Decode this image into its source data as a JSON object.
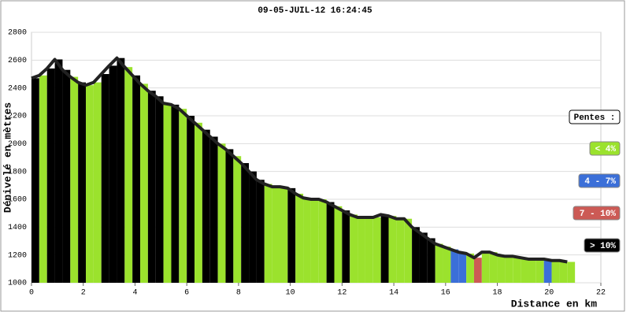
{
  "chart_data": {
    "type": "elevation-profile",
    "title": "09-05-JUIL-12 16:24:45",
    "y_label": "Dénivelé en mètres",
    "x_label": "Distance en km",
    "xlim": [
      0,
      22
    ],
    "xticks": [
      0,
      2,
      4,
      6,
      8,
      10,
      12,
      14,
      16,
      18,
      20,
      22
    ],
    "ylim": [
      1000,
      2800
    ],
    "yticks": [
      1000,
      1200,
      1400,
      1600,
      1800,
      2000,
      2200,
      2400,
      2600,
      2800
    ],
    "grid": true,
    "x": [
      0,
      0.3,
      0.6,
      0.9,
      1.2,
      1.5,
      1.8,
      2.1,
      2.4,
      2.7,
      3.0,
      3.3,
      3.6,
      3.9,
      4.2,
      4.5,
      4.8,
      5.1,
      5.4,
      5.7,
      6.0,
      6.3,
      6.6,
      6.9,
      7.2,
      7.5,
      7.8,
      8.1,
      8.4,
      8.7,
      9.0,
      9.3,
      9.6,
      9.9,
      10.2,
      10.5,
      10.8,
      11.1,
      11.4,
      11.7,
      12.0,
      12.3,
      12.6,
      12.9,
      13.2,
      13.5,
      13.8,
      14.1,
      14.4,
      14.7,
      15.0,
      15.3,
      15.6,
      15.9,
      16.2,
      16.5,
      16.8,
      17.1,
      17.4,
      17.7,
      18.0,
      18.3,
      18.6,
      18.9,
      19.2,
      19.5,
      19.8,
      20.1,
      20.4,
      20.7
    ],
    "values": [
      2470,
      2490,
      2540,
      2605,
      2530,
      2480,
      2440,
      2420,
      2440,
      2500,
      2560,
      2615,
      2550,
      2490,
      2430,
      2380,
      2340,
      2290,
      2280,
      2250,
      2200,
      2150,
      2100,
      2050,
      2000,
      1960,
      1910,
      1860,
      1800,
      1740,
      1710,
      1690,
      1690,
      1680,
      1640,
      1610,
      1600,
      1600,
      1580,
      1550,
      1520,
      1490,
      1470,
      1470,
      1470,
      1490,
      1480,
      1460,
      1460,
      1400,
      1360,
      1320,
      1280,
      1260,
      1240,
      1220,
      1210,
      1180,
      1220,
      1220,
      1200,
      1190,
      1190,
      1180,
      1170,
      1170,
      1170,
      1160,
      1160,
      1150
    ],
    "slope_classes": [
      3,
      0,
      3,
      3,
      3,
      0,
      3,
      0,
      0,
      3,
      3,
      3,
      0,
      3,
      0,
      3,
      3,
      0,
      3,
      0,
      3,
      0,
      3,
      3,
      0,
      3,
      0,
      3,
      3,
      3,
      0,
      0,
      0,
      3,
      0,
      0,
      0,
      0,
      3,
      0,
      3,
      0,
      0,
      0,
      0,
      3,
      0,
      0,
      0,
      3,
      3,
      3,
      0,
      0,
      1,
      1,
      0,
      2,
      0,
      0,
      0,
      0,
      0,
      0,
      0,
      0,
      1,
      0,
      0,
      0
    ],
    "line_color": "#222222",
    "legend": {
      "position": "right",
      "title": "Pentes :",
      "entries": [
        {
          "label": "< 4%",
          "color": "#9be22d"
        },
        {
          "label": "4 - 7%",
          "color": "#3b6fd8"
        },
        {
          "label": "7 - 10%",
          "color": "#cc5a55"
        },
        {
          "label": "> 10%",
          "color": "#000000"
        }
      ]
    }
  }
}
